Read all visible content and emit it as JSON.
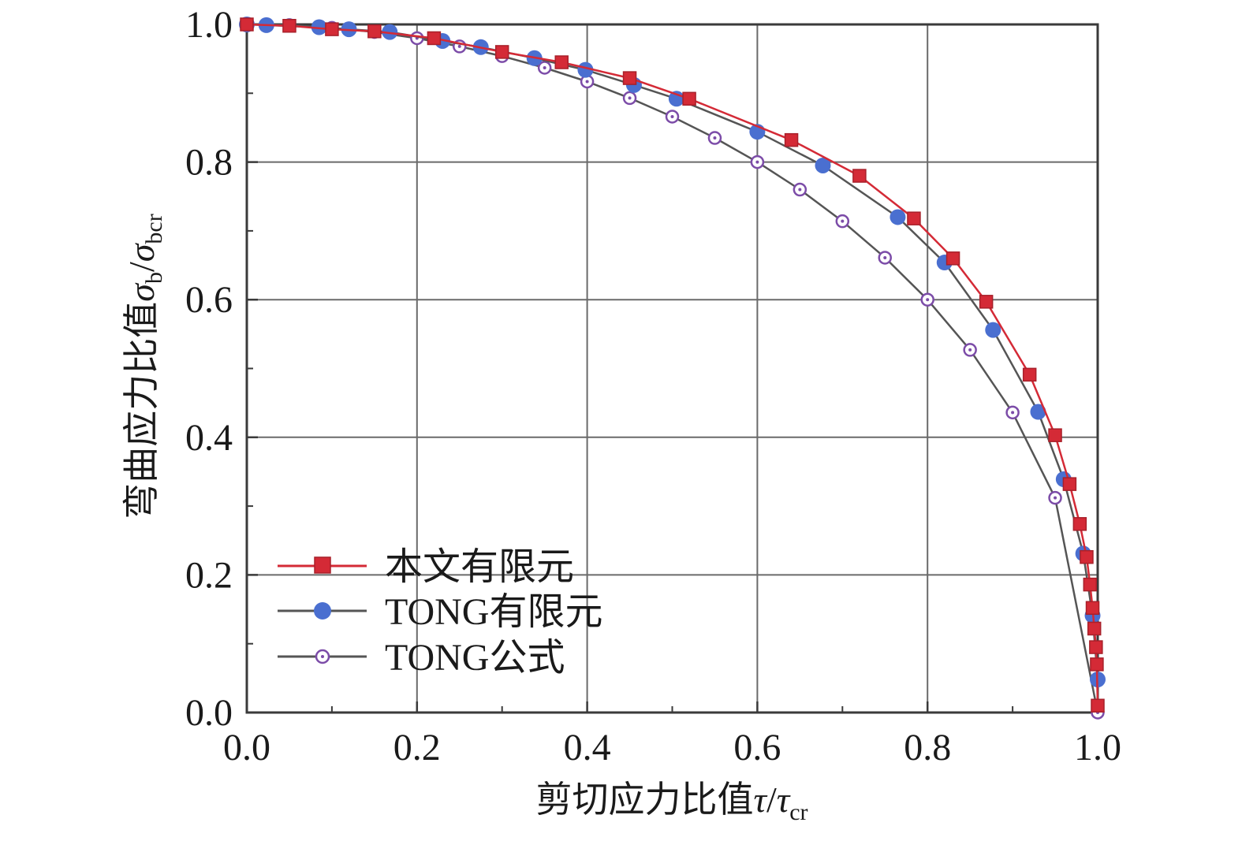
{
  "chart_data": {
    "type": "line",
    "title": "",
    "xlabel": {
      "prefix": "剪切应力比值",
      "sym": "τ",
      "sep": "/",
      "sym2": "τ",
      "sub2": "cr"
    },
    "ylabel": {
      "prefix": "弯曲应力比值",
      "sym": "σ",
      "sub": "b",
      "sep": "/",
      "sym2": "σ",
      "sub2": "bcr"
    },
    "xlim": [
      0,
      1
    ],
    "ylim": [
      0,
      1
    ],
    "xticks": [
      "0.0",
      "0.2",
      "0.4",
      "0.6",
      "0.8",
      "1.0"
    ],
    "yticks": [
      "0.0",
      "0.2",
      "0.4",
      "0.6",
      "0.8",
      "1.0"
    ],
    "grid": true,
    "legend_position": "bottom-left",
    "series": [
      {
        "name": "本文有限元",
        "color": "#d42a36",
        "marker": "square",
        "x": [
          0.0,
          0.05,
          0.1,
          0.15,
          0.22,
          0.3,
          0.37,
          0.45,
          0.52,
          0.64,
          0.72,
          0.784,
          0.83,
          0.869,
          0.92,
          0.95,
          0.967,
          0.979,
          0.987,
          0.991,
          0.994,
          0.996,
          0.998,
          0.999,
          1.0
        ],
        "y": [
          1.0,
          0.998,
          0.993,
          0.99,
          0.98,
          0.96,
          0.945,
          0.922,
          0.892,
          0.832,
          0.78,
          0.718,
          0.66,
          0.597,
          0.491,
          0.403,
          0.332,
          0.274,
          0.226,
          0.186,
          0.152,
          0.122,
          0.095,
          0.07,
          0.01
        ]
      },
      {
        "name": "TONG有限元",
        "color": "#4a6fd0",
        "marker": "circle",
        "x": [
          0.0,
          0.023,
          0.085,
          0.12,
          0.168,
          0.23,
          0.275,
          0.338,
          0.398,
          0.455,
          0.505,
          0.6,
          0.677,
          0.765,
          0.82,
          0.877,
          0.93,
          0.96,
          0.983,
          0.994,
          1.0
        ],
        "y": [
          1.0,
          0.999,
          0.996,
          0.993,
          0.989,
          0.976,
          0.967,
          0.951,
          0.934,
          0.912,
          0.892,
          0.844,
          0.795,
          0.72,
          0.654,
          0.556,
          0.437,
          0.339,
          0.231,
          0.141,
          0.048
        ]
      },
      {
        "name": "TONG公式",
        "color": "#7c4ca8",
        "marker": "open-circle",
        "x": [
          0.0,
          0.05,
          0.1,
          0.15,
          0.2,
          0.25,
          0.3,
          0.35,
          0.4,
          0.45,
          0.5,
          0.55,
          0.6,
          0.65,
          0.7,
          0.75,
          0.8,
          0.85,
          0.9,
          0.95,
          1.0
        ],
        "y": [
          1.0,
          0.999,
          0.995,
          0.989,
          0.98,
          0.968,
          0.954,
          0.937,
          0.917,
          0.893,
          0.866,
          0.835,
          0.8,
          0.76,
          0.714,
          0.661,
          0.6,
          0.527,
          0.436,
          0.312,
          0.0
        ]
      }
    ]
  }
}
